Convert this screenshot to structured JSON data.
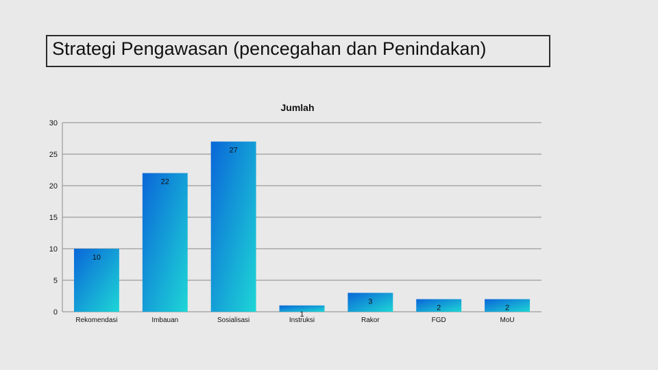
{
  "slide": {
    "title": "Strategi Pengawasan (pencegahan dan Penindakan)"
  },
  "chart_data": {
    "type": "bar",
    "title": "Jumlah",
    "categories": [
      "Rekomendasi",
      "Imbauan",
      "Sosialisasi",
      "Instruksi",
      "Rakor",
      "FGD",
      "MoU"
    ],
    "series": [
      {
        "values": [
          10,
          22,
          27,
          1,
          3,
          2,
          2
        ]
      }
    ],
    "ylim": [
      0,
      30
    ],
    "yticks": [
      0,
      5,
      10,
      15,
      20,
      25,
      30
    ],
    "grid": true,
    "legend": "none",
    "data_labels": true,
    "bar_gradient": [
      "#0a66d8",
      "#1ed6d6"
    ]
  }
}
